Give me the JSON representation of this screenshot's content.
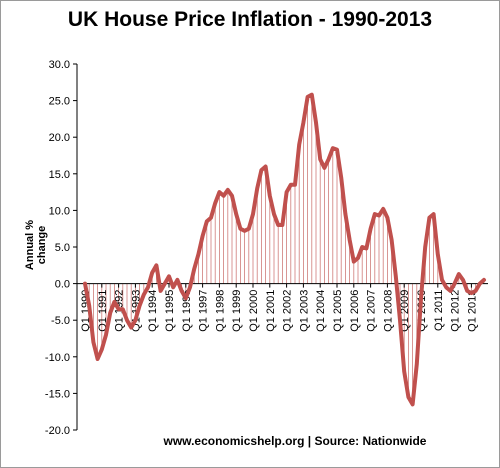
{
  "chart_data": {
    "type": "line",
    "title": "UK House Price Inflation - 1990-2013",
    "ylabel": "Annual % change",
    "xlabel": "",
    "source": "www.economicshelp.org | Source: Nationwide",
    "ylim": [
      -20,
      30
    ],
    "y_ticks": [
      "30.0",
      "25.0",
      "20.0",
      "15.0",
      "10.0",
      "5.0",
      "0.0",
      "-5.0",
      "-10.0",
      "-15.0",
      "-20.0"
    ],
    "x_start": "1990 Q1",
    "x_end": "2013 Q4",
    "x_tick_labels": [
      "Q1 1990",
      "Q1 1991",
      "Q1 1992",
      "Q1 1993",
      "Q1 1994",
      "Q1 1995",
      "Q1 1996",
      "Q1 1997",
      "Q1 1998",
      "Q1 1999",
      "Q1 2000",
      "Q1 2001",
      "Q1 2002",
      "Q1 2003",
      "Q1 2004",
      "Q1 2005",
      "Q1 2006",
      "Q1 2007",
      "Q1 2008",
      "Q1 2009",
      "Q1 2010",
      "Q1 2011",
      "Q1 2012",
      "Q1 2013"
    ],
    "grid": false,
    "line_color": "#c0504d",
    "series": [
      {
        "values": [
          0.0,
          -3.0,
          -8.0,
          -10.3,
          -9.0,
          -7.0,
          -4.0,
          -2.5,
          -3.5,
          -3.5,
          -5.0,
          -6.0,
          -5.0,
          -3.0,
          -1.5,
          -0.5,
          1.5,
          2.5,
          -1.0,
          0.0,
          1.0,
          -0.5,
          0.5,
          -1.0,
          -2.0,
          -0.5,
          2.0,
          4.0,
          6.5,
          8.5,
          9.0,
          11.0,
          12.5,
          12.0,
          12.8,
          12.0,
          9.5,
          7.5,
          7.2,
          7.5,
          9.5,
          13.0,
          15.5,
          16.0,
          12.0,
          9.5,
          8.0,
          8.0,
          12.5,
          13.5,
          13.5,
          19.0,
          22.0,
          25.5,
          25.8,
          22.0,
          17.0,
          15.8,
          17.0,
          18.5,
          18.3,
          14.5,
          9.5,
          6.0,
          3.0,
          3.5,
          5.0,
          4.8,
          7.5,
          9.5,
          9.3,
          10.2,
          9.0,
          6.0,
          1.0,
          -5.0,
          -12.0,
          -15.5,
          -16.5,
          -11.0,
          -2.0,
          5.0,
          9.0,
          9.5,
          4.0,
          0.5,
          -0.5,
          -1.0,
          0.0,
          1.3,
          0.5,
          -1.0,
          -1.3,
          -1.0,
          0.0,
          0.5
        ]
      }
    ]
  }
}
